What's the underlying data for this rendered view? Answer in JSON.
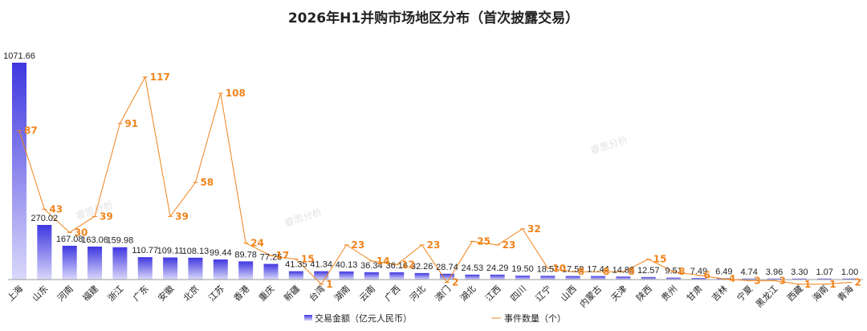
{
  "chart_data": {
    "type": "bar",
    "title": "2026年H1并购市场地区分布（首次披露交易）",
    "categories": [
      "上海",
      "山东",
      "河南",
      "福建",
      "浙江",
      "广东",
      "安徽",
      "北京",
      "江苏",
      "香港",
      "重庆",
      "新疆",
      "台湾",
      "湖南",
      "云南",
      "广西",
      "河北",
      "澳门",
      "湖北",
      "江西",
      "四川",
      "辽宁",
      "山西",
      "内蒙古",
      "天津",
      "陕西",
      "贵州",
      "甘肃",
      "吉林",
      "宁夏",
      "黑龙江",
      "西藏",
      "海南",
      "青海"
    ],
    "series": [
      {
        "name": "交易金额（亿元人民币）",
        "type": "bar",
        "axis": "left",
        "values": [
          1071.66,
          270.02,
          167.08,
          163.06,
          159.98,
          110.77,
          109.11,
          108.13,
          99.44,
          89.78,
          77.25,
          41.35,
          41.34,
          40.13,
          36.34,
          36.16,
          32.26,
          28.74,
          24.53,
          24.29,
          19.5,
          18.57,
          17.59,
          17.44,
          14.88,
          12.57,
          9.51,
          7.49,
          6.49,
          4.74,
          3.96,
          3.3,
          1.07,
          1.0
        ],
        "labels": [
          "1071.66",
          "270.02",
          "167.08",
          "163.06",
          "159.98",
          "110.77",
          "109.11",
          "108.13",
          "99.44",
          "89.78",
          "77.25",
          "41.35",
          "41.34",
          "40.13",
          "36.34",
          "36.16",
          "32.26",
          "28.74",
          "24.53",
          "24.29",
          "19.50",
          "18.57",
          "17.59",
          "17.44",
          "14.88",
          "12.57",
          "9.51",
          "7.49",
          "6.49",
          "4.74",
          "3.96",
          "3.30",
          "1.07",
          "1.00"
        ],
        "color_top": "#3f37e0",
        "color_bottom": "#dad8fa"
      },
      {
        "name": "事件数量（个）",
        "type": "line",
        "axis": "right",
        "values": [
          87,
          43,
          30,
          39,
          91,
          117,
          39,
          58,
          108,
          24,
          17,
          15,
          1,
          23,
          14,
          12,
          23,
          2,
          25,
          23,
          32,
          10,
          8,
          8,
          8,
          15,
          8,
          6,
          4,
          3,
          3,
          1,
          1,
          2
        ],
        "color": "#f0841c"
      }
    ],
    "ylim_left": [
      0,
      1071.66
    ],
    "ylim_right": [
      0,
      117
    ],
    "grid": false,
    "legend": "bottom-center",
    "watermark": "睿思分析"
  }
}
